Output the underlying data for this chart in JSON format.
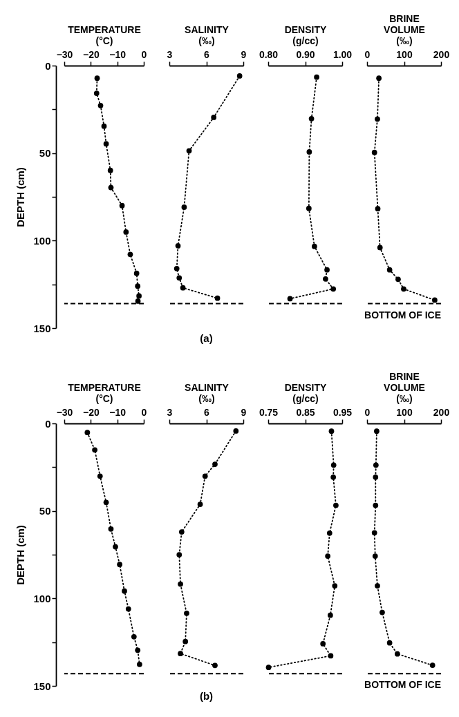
{
  "chart_data": [
    {
      "type": "line",
      "xlabel": "TEMPERATURE\n(°C)",
      "ylabel": "DEPTH (cm)",
      "color": "#000000",
      "marker": "circle",
      "line_style": "dotted",
      "xlim": [
        -30,
        0
      ],
      "xticks": [
        -30,
        -20,
        -10,
        0
      ],
      "ylim": [
        150,
        0
      ],
      "yticks": [
        0,
        {
          "value": 25,
          "label": null
        },
        50,
        {
          "value": 75,
          "label": null
        },
        100,
        {
          "value": 125,
          "label": null
        },
        150
      ],
      "x": [
        -17.6,
        -17.8,
        -16.3,
        -15.0,
        -14.2,
        -12.6,
        -12.4,
        -8.2,
        -6.7,
        -5.1,
        -2.7,
        -2.3,
        -1.8,
        -2.2
      ],
      "values": [
        7.2,
        15.8,
        22.8,
        34.6,
        44.7,
        59.9,
        69.7,
        80.0,
        95.1,
        107.9,
        118.7,
        126.0,
        131.6,
        134.6
      ],
      "ref_lines": [
        {
          "axis": "y",
          "value": 136,
          "line_style": "dashed"
        }
      ]
    },
    {
      "type": "line",
      "xlabel": "SALINITY\n(‰)",
      "color": "#000000",
      "marker": "circle",
      "line_style": "dotted",
      "xlim": [
        3,
        9
      ],
      "xticks": [
        3,
        6,
        9
      ],
      "ylim": [
        150,
        0
      ],
      "tick_labels": "x",
      "x": [
        8.7,
        6.6,
        4.6,
        4.2,
        3.7,
        3.6,
        3.8,
        4.1,
        6.9
      ],
      "values": [
        5.9,
        29.6,
        48.7,
        80.9,
        103,
        116,
        121.3,
        127,
        132.9
      ],
      "ref_lines": [
        {
          "axis": "y",
          "value": 136,
          "line_style": "dashed"
        }
      ],
      "annotations": [
        "(a)"
      ]
    },
    {
      "type": "line",
      "xlabel": "DENSITY\n(g/cc)",
      "color": "#000000",
      "marker": "circle",
      "line_style": "dotted",
      "xlim": [
        0.8,
        1.0
      ],
      "xticks": [
        {
          "value": 0.8,
          "label": "0.80"
        },
        {
          "value": 0.9,
          "label": "0.90"
        },
        {
          "value": 1.0,
          "label": "1.00"
        }
      ],
      "ylim": [
        150,
        0
      ],
      "tick_labels": "x",
      "x": [
        0.931,
        0.917,
        0.911,
        0.91,
        0.925,
        0.959,
        0.955,
        0.976,
        0.859
      ],
      "values": [
        6.6,
        30.3,
        49.3,
        81.6,
        103.3,
        116.7,
        121.9,
        127.6,
        133.2
      ],
      "ref_lines": [
        {
          "axis": "y",
          "value": 136,
          "line_style": "dashed"
        }
      ]
    },
    {
      "type": "line",
      "xlabel": "BRINE\nVOLUME\n(‰)",
      "color": "#000000",
      "marker": "circle",
      "line_style": "dotted",
      "xlim": [
        0,
        200
      ],
      "xticks": [
        0,
        100,
        200
      ],
      "ylim": [
        150,
        0
      ],
      "tick_labels": "x",
      "x": [
        32,
        28,
        20,
        29,
        35,
        61,
        84,
        99,
        183
      ],
      "values": [
        7.2,
        30.5,
        49.6,
        81.8,
        104,
        116.7,
        122.1,
        127.6,
        134
      ],
      "ref_lines": [
        {
          "axis": "y",
          "value": 136,
          "line_style": "dashed",
          "label": "BOTTOM OF ICE"
        }
      ]
    },
    {
      "type": "line",
      "xlabel": "TEMPERATURE\n(°C)",
      "ylabel": "DEPTH (cm)",
      "color": "#000000",
      "marker": "circle",
      "line_style": "dotted",
      "xlim": [
        -30,
        0
      ],
      "xticks": [
        -30,
        -20,
        -10,
        0
      ],
      "ylim": [
        150,
        0
      ],
      "yticks": [
        0,
        {
          "value": 25,
          "label": null
        },
        50,
        {
          "value": 75,
          "label": null
        },
        100,
        {
          "value": 125,
          "label": null
        },
        150
      ],
      "x": [
        -21.3,
        -18.5,
        -16.5,
        -14.2,
        -12.4,
        -10.7,
        -9.1,
        -7.3,
        -5.8,
        -3.7,
        -2.3,
        -1.6
      ],
      "values": [
        5.2,
        15.1,
        30.1,
        45.1,
        60.3,
        70.5,
        80.6,
        95.8,
        106,
        121.9,
        129.6,
        137.7
      ],
      "ref_lines": [
        {
          "axis": "y",
          "value": 143,
          "line_style": "dashed"
        }
      ]
    },
    {
      "type": "line",
      "xlabel": "SALINITY\n(‰)",
      "color": "#000000",
      "marker": "circle",
      "line_style": "dotted",
      "xlim": [
        3,
        9
      ],
      "xticks": [
        3,
        6,
        9
      ],
      "ylim": [
        150,
        0
      ],
      "tick_labels": "x",
      "x": [
        8.4,
        6.7,
        5.9,
        5.5,
        4.0,
        3.8,
        3.9,
        4.4,
        4.3,
        3.9,
        6.7
      ],
      "values": [
        4.3,
        23.3,
        30.1,
        46.2,
        62.0,
        75,
        91.8,
        108.5,
        124.6,
        131.5,
        138.3
      ],
      "ref_lines": [
        {
          "axis": "y",
          "value": 143,
          "line_style": "dashed"
        }
      ],
      "annotations": [
        "(b)"
      ]
    },
    {
      "type": "line",
      "xlabel": "DENSITY\n(g/cc)",
      "color": "#000000",
      "marker": "circle",
      "line_style": "dotted",
      "xlim": [
        0.75,
        0.95
      ],
      "xticks": [
        0.75,
        0.85,
        0.95
      ],
      "ylim": [
        150,
        0
      ],
      "tick_labels": "x",
      "x": [
        0.921,
        0.927,
        0.926,
        0.933,
        0.916,
        0.911,
        0.93,
        0.918,
        0.898,
        0.919,
        0.751
      ],
      "values": [
        4.4,
        23.8,
        30.7,
        46.8,
        62.7,
        75.8,
        92.8,
        109.6,
        125.9,
        132.8,
        139.4
      ],
      "ref_lines": [
        {
          "axis": "y",
          "value": 143,
          "line_style": "dashed"
        }
      ]
    },
    {
      "type": "line",
      "xlabel": "BRINE\nVOLUME\n(‰)",
      "color": "#000000",
      "marker": "circle",
      "line_style": "dotted",
      "xlim": [
        0,
        200
      ],
      "xticks": [
        0,
        100,
        200
      ],
      "ylim": [
        150,
        0
      ],
      "tick_labels": "x",
      "x": [
        26,
        24,
        23,
        23,
        20,
        22,
        28,
        41,
        61,
        82,
        177
      ],
      "values": [
        4.4,
        23.8,
        30.7,
        46.8,
        62.5,
        75.8,
        92.8,
        108,
        125.4,
        131.7,
        138.2
      ],
      "ref_lines": [
        {
          "axis": "y",
          "value": 143,
          "line_style": "dashed",
          "label": "BOTTOM OF ICE"
        }
      ]
    }
  ]
}
